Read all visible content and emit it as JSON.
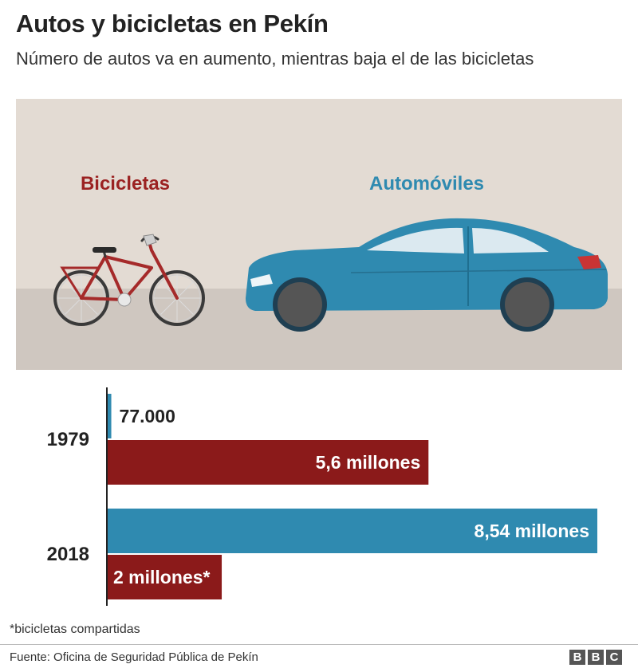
{
  "header": {
    "title": "Autos y bicicletas en Pekín",
    "subtitle": "Número de autos va en aumento, mientras baja el de las bicicletas"
  },
  "illustration": {
    "bike_label": "Bicicletas",
    "car_label": "Automóviles"
  },
  "colors": {
    "cars": "#2f8ab0",
    "bicycles": "#8b1a1a",
    "background_panel": "#e3dbd3",
    "ground": "#cfc7c0"
  },
  "chart_data": {
    "type": "bar",
    "orientation": "horizontal",
    "categories": [
      "1979",
      "2018"
    ],
    "series": [
      {
        "name": "Automóviles",
        "values": [
          77000,
          8540000
        ],
        "labels": [
          "77.000",
          "8,54 millones"
        ]
      },
      {
        "name": "Bicicletas",
        "values": [
          5600000,
          2000000
        ],
        "labels": [
          "5,6 millones",
          "2 millones*"
        ]
      }
    ]
  },
  "footnote": "*bicicletas compartidas",
  "source": "Fuente: Oficina de Seguridad Pública de Pekín",
  "logo": {
    "letters": [
      "B",
      "B",
      "C"
    ]
  }
}
